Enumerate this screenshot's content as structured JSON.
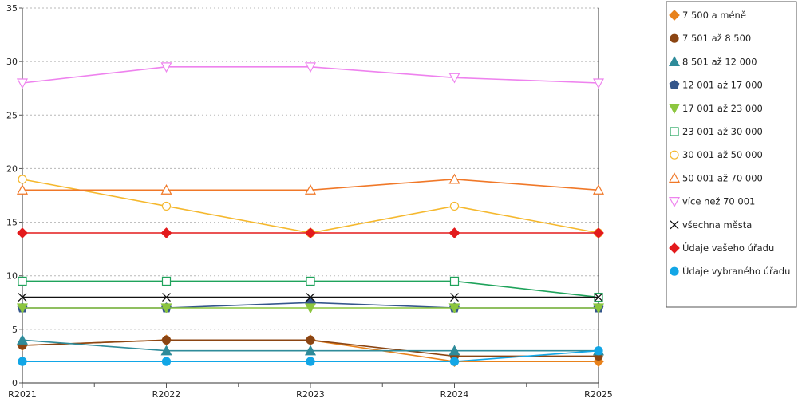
{
  "chart_data": {
    "type": "line",
    "categories": [
      "R2021",
      "R2022",
      "R2023",
      "R2024",
      "R2025"
    ],
    "ylim": [
      0,
      35
    ],
    "yticks": [
      "0",
      "5",
      "10",
      "15",
      "20",
      "25",
      "30",
      "35"
    ],
    "grid": true,
    "legend_position": "right",
    "series": [
      {
        "name": "7 500 a méně",
        "color": "#E8821C",
        "marker": "diamond",
        "filled": true,
        "values": [
          3.5,
          4,
          4,
          2,
          2
        ]
      },
      {
        "name": "7 501 až 8 500",
        "color": "#8B4513",
        "marker": "circle",
        "filled": true,
        "values": [
          3.5,
          4,
          4,
          2.5,
          2.5
        ]
      },
      {
        "name": "8 501 až 12 000",
        "color": "#2E8B9A",
        "marker": "triangle",
        "filled": true,
        "values": [
          4,
          3,
          3,
          3,
          3
        ]
      },
      {
        "name": "12 001 až 17 000",
        "color": "#34568B",
        "marker": "pentagon",
        "filled": true,
        "values": [
          7,
          7,
          7.5,
          7,
          7
        ]
      },
      {
        "name": "17 001 až 23 000",
        "color": "#8CC63F",
        "marker": "triangle-down",
        "filled": true,
        "values": [
          7,
          7,
          7,
          7,
          7
        ]
      },
      {
        "name": "23 001 až 30 000",
        "color": "#1FA35B",
        "marker": "square",
        "filled": false,
        "values": [
          9.5,
          9.5,
          9.5,
          9.5,
          8
        ]
      },
      {
        "name": "30 001 až 50 000",
        "color": "#F5B82E",
        "marker": "circle",
        "filled": false,
        "values": [
          19,
          16.5,
          14,
          16.5,
          14
        ]
      },
      {
        "name": "50 001 až 70 000",
        "color": "#F07828",
        "marker": "triangle",
        "filled": false,
        "values": [
          18,
          18,
          18,
          19,
          18
        ]
      },
      {
        "name": "více než 70 001",
        "color": "#EE82EE",
        "marker": "triangle-down",
        "filled": false,
        "values": [
          28,
          29.5,
          29.5,
          28.5,
          28
        ]
      },
      {
        "name": "všechna města",
        "color": "#111111",
        "marker": "x",
        "filled": false,
        "values": [
          8,
          8,
          8,
          8,
          8
        ]
      },
      {
        "name": "Údaje vašeho úřadu",
        "color": "#E31A1C",
        "marker": "diamond",
        "filled": true,
        "values": [
          14,
          14,
          14,
          14,
          14
        ]
      },
      {
        "name": "Údaje vybraného úřadu",
        "color": "#12A6E6",
        "marker": "circle",
        "filled": true,
        "values": [
          2,
          2,
          2,
          2,
          3
        ]
      }
    ]
  }
}
